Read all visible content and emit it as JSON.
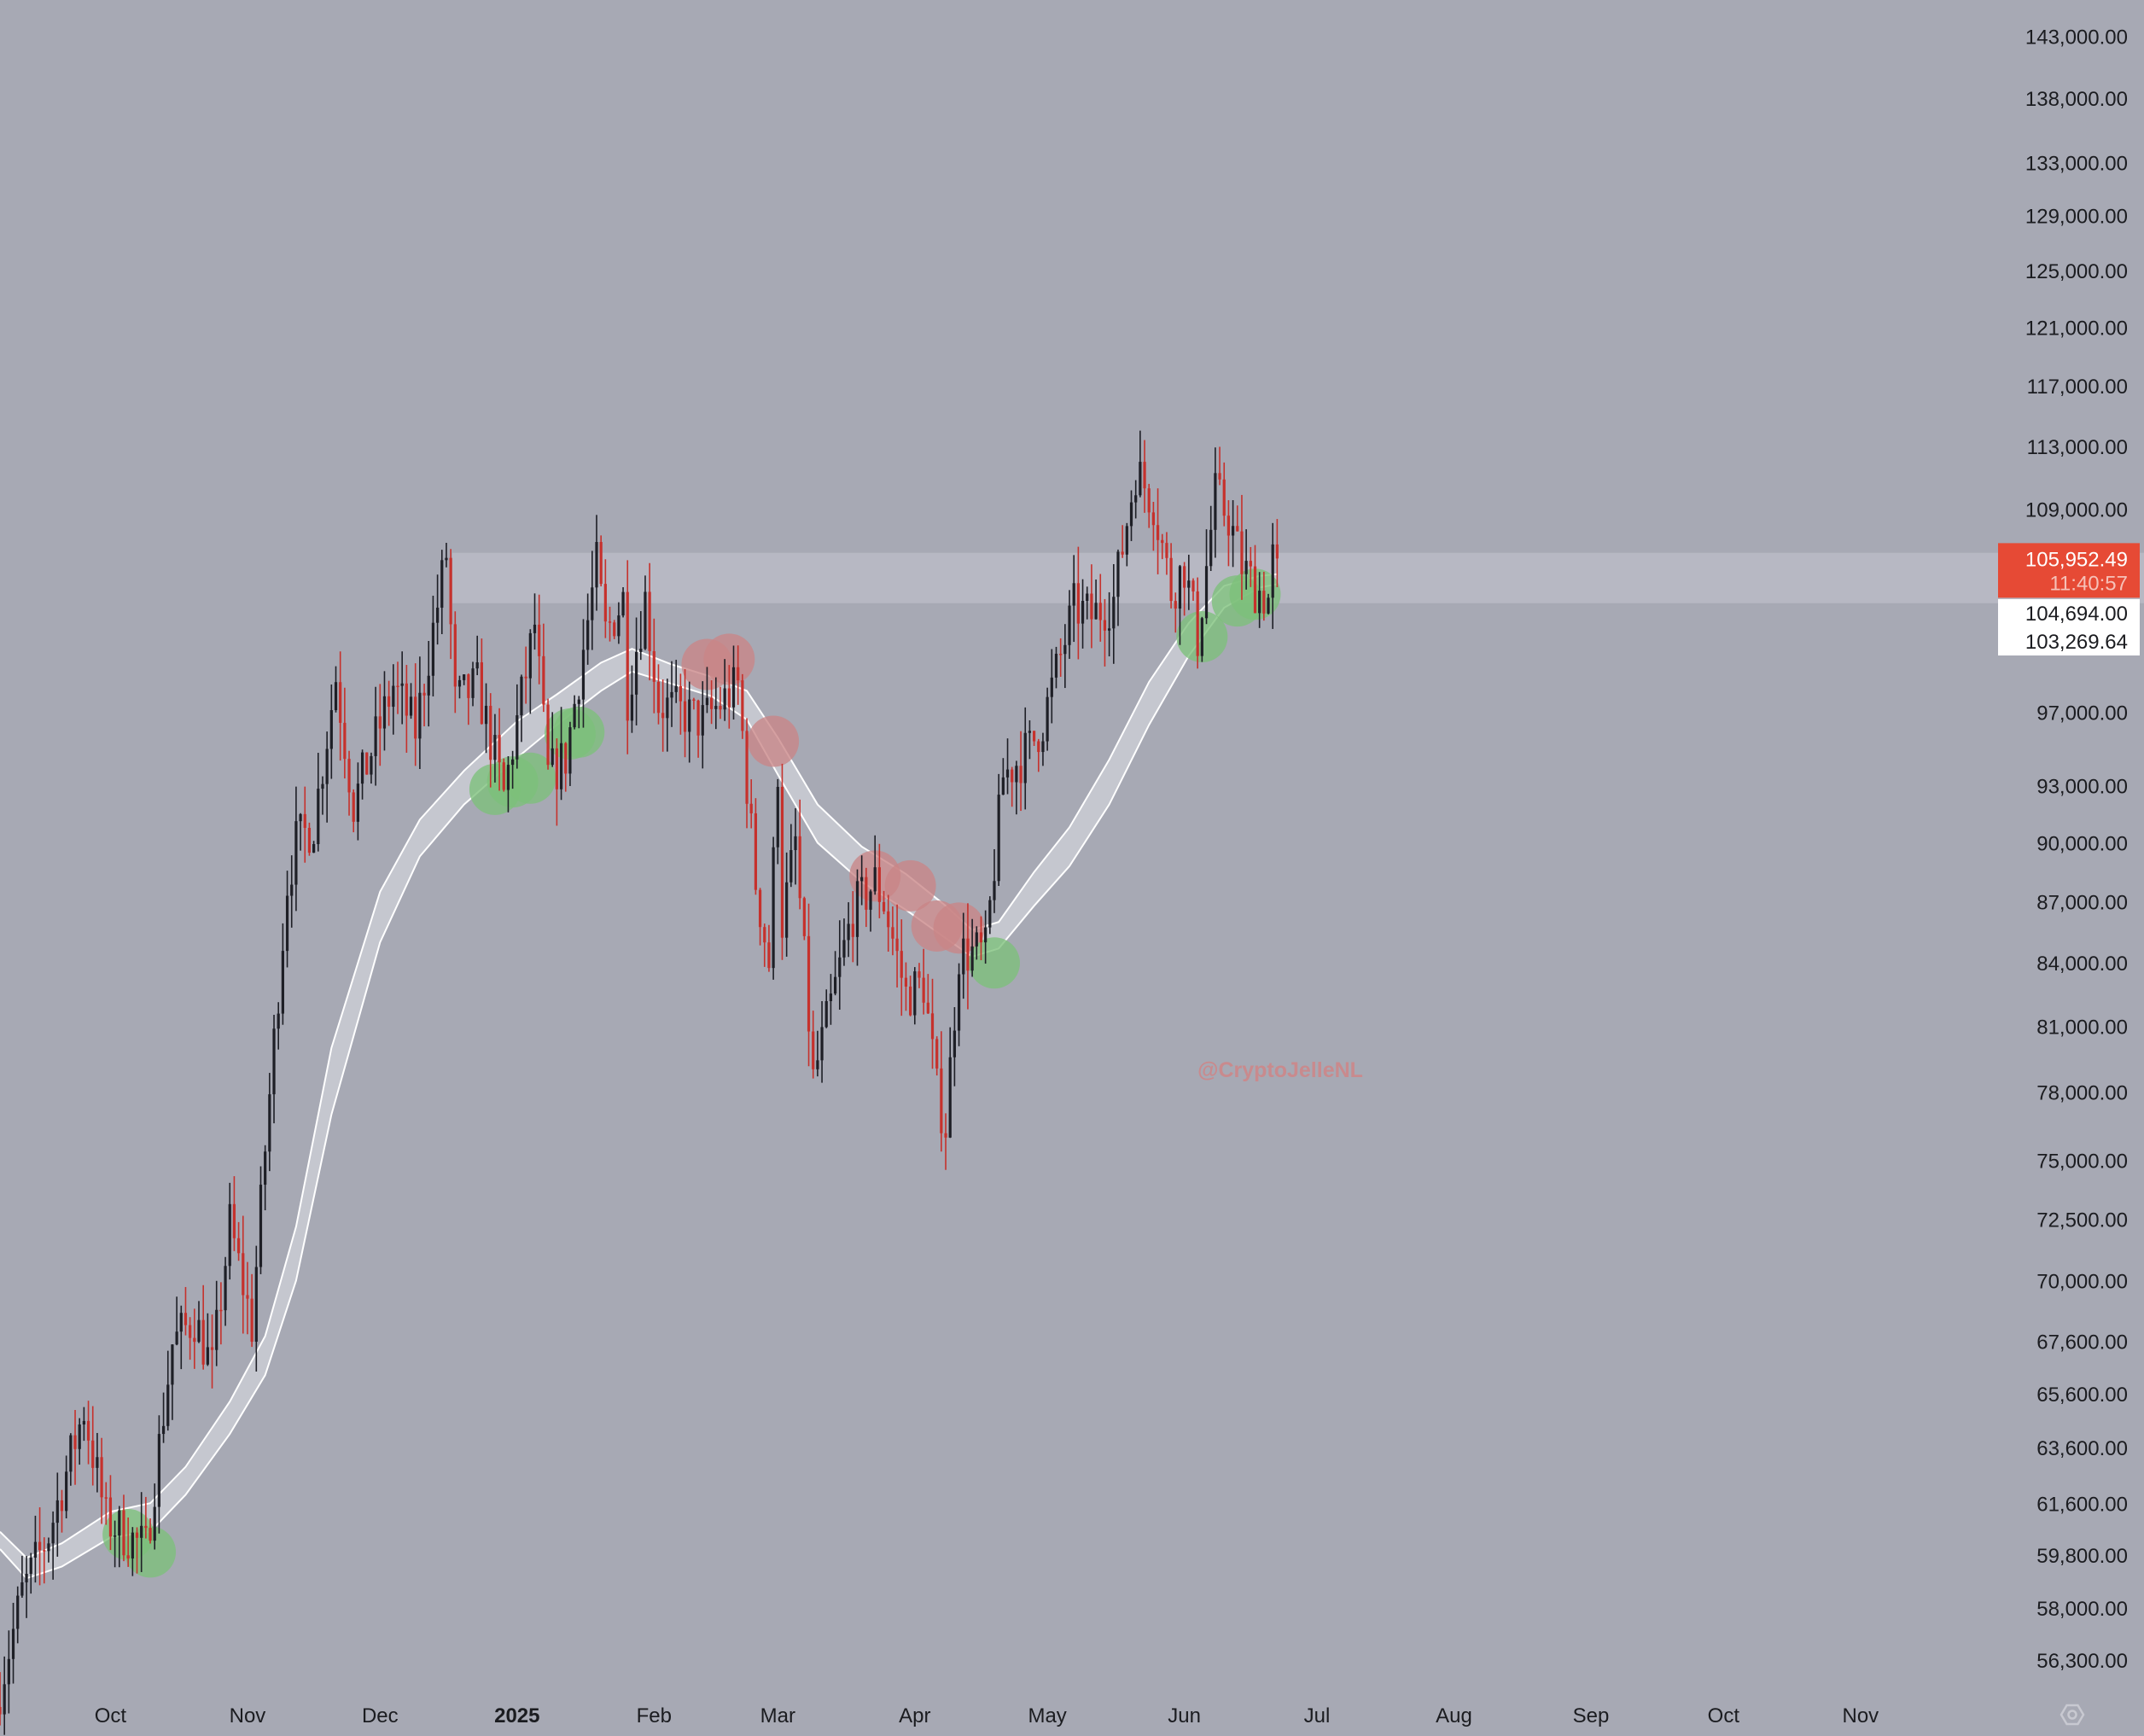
{
  "colors": {
    "background": "#a7a9b4",
    "up_candle": "#1e1f26",
    "down_candle": "#c6312c",
    "band_fill": "#c9cad2",
    "band_edge": "#ffffff",
    "zone": "#babbc6",
    "green_marker": "#7cc07a",
    "red_marker": "#c98587",
    "price_badge": "#e64a35",
    "price_text": "#1b1c20"
  },
  "watermark": "@CryptoJelleNL",
  "settings_icon": "gear-icon",
  "chart_data": {
    "type": "candlestick",
    "title": "",
    "y_scale": "log",
    "ylim": [
      54800,
      146000
    ],
    "xlim": [
      "2024-09-06",
      "2025-11-30"
    ],
    "y_ticks": [
      "143,000.00",
      "138,000.00",
      "133,000.00",
      "129,000.00",
      "125,000.00",
      "121,000.00",
      "117,000.00",
      "113,000.00",
      "109,000.00",
      "97,000.00",
      "93,000.00",
      "90,000.00",
      "87,000.00",
      "84,000.00",
      "81,000.00",
      "78,000.00",
      "75,000.00",
      "72,500.00",
      "70,000.00",
      "67,600.00",
      "65,600.00",
      "63,600.00",
      "61,600.00",
      "59,800.00",
      "58,000.00",
      "56,300.00"
    ],
    "x_ticks": [
      {
        "label": "Oct",
        "date": "2024-10-01",
        "bold": false
      },
      {
        "label": "Nov",
        "date": "2024-11-01",
        "bold": false
      },
      {
        "label": "Dec",
        "date": "2024-12-01",
        "bold": false
      },
      {
        "label": "2025",
        "date": "2025-01-01",
        "bold": true
      },
      {
        "label": "Feb",
        "date": "2025-02-01",
        "bold": false
      },
      {
        "label": "Mar",
        "date": "2025-03-01",
        "bold": false
      },
      {
        "label": "Apr",
        "date": "2025-04-01",
        "bold": false
      },
      {
        "label": "May",
        "date": "2025-05-01",
        "bold": false
      },
      {
        "label": "Jun",
        "date": "2025-06-01",
        "bold": false
      },
      {
        "label": "Jul",
        "date": "2025-07-01",
        "bold": false
      },
      {
        "label": "Aug",
        "date": "2025-08-01",
        "bold": false
      },
      {
        "label": "Sep",
        "date": "2025-09-01",
        "bold": false
      },
      {
        "label": "Oct",
        "date": "2025-10-01",
        "bold": false
      },
      {
        "label": "Nov",
        "date": "2025-11-01",
        "bold": false
      }
    ],
    "price_path": [
      [
        "2024-09-06",
        54800
      ],
      [
        "2024-09-12",
        58500
      ],
      [
        "2024-09-18",
        60500
      ],
      [
        "2024-09-26",
        65000
      ],
      [
        "2024-10-01",
        61000
      ],
      [
        "2024-10-10",
        60000
      ],
      [
        "2024-10-16",
        67500
      ],
      [
        "2024-10-21",
        68500
      ],
      [
        "2024-10-25",
        66500
      ],
      [
        "2024-10-29",
        72300
      ],
      [
        "2024-11-03",
        68200
      ],
      [
        "2024-11-06",
        75500
      ],
      [
        "2024-11-11",
        88000
      ],
      [
        "2024-11-13",
        90000
      ],
      [
        "2024-11-17",
        91000
      ],
      [
        "2024-11-22",
        99000
      ],
      [
        "2024-11-26",
        92000
      ],
      [
        "2024-12-05",
        98500
      ],
      [
        "2024-12-10",
        96000
      ],
      [
        "2024-12-17",
        106200
      ],
      [
        "2024-12-19",
        97500
      ],
      [
        "2024-12-24",
        98500
      ],
      [
        "2024-12-30",
        92500
      ],
      [
        "2025-01-06",
        102000
      ],
      [
        "2025-01-09",
        93500
      ],
      [
        "2025-01-13",
        94500
      ],
      [
        "2025-01-20",
        105500
      ],
      [
        "2025-01-22",
        101500
      ],
      [
        "2025-01-26",
        103500
      ],
      [
        "2025-01-27",
        98000
      ],
      [
        "2025-01-31",
        103500
      ],
      [
        "2025-02-03",
        97500
      ],
      [
        "2025-02-13",
        96500
      ],
      [
        "2025-02-21",
        98500
      ],
      [
        "2025-02-25",
        88000
      ],
      [
        "2025-02-28",
        84000
      ],
      [
        "2025-03-02",
        94000
      ],
      [
        "2025-03-03",
        86000
      ],
      [
        "2025-03-06",
        90000
      ],
      [
        "2025-03-10",
        78500
      ],
      [
        "2025-03-19",
        86500
      ],
      [
        "2025-03-24",
        88000
      ],
      [
        "2025-03-26",
        87000
      ],
      [
        "2025-03-31",
        82500
      ],
      [
        "2025-04-04",
        83000
      ],
      [
        "2025-04-07",
        78000
      ],
      [
        "2025-04-09",
        76500
      ],
      [
        "2025-04-12",
        84500
      ],
      [
        "2025-04-18",
        84500
      ],
      [
        "2025-04-22",
        93500
      ],
      [
        "2025-04-28",
        95000
      ],
      [
        "2025-05-01",
        96500
      ],
      [
        "2025-05-08",
        103000
      ],
      [
        "2025-05-12",
        102500
      ],
      [
        "2025-05-17",
        103500
      ],
      [
        "2025-05-22",
        111500
      ],
      [
        "2025-05-26",
        109500
      ],
      [
        "2025-05-30",
        104000
      ],
      [
        "2025-06-02",
        105500
      ],
      [
        "2025-06-05",
        101200
      ],
      [
        "2025-06-09",
        109900
      ],
      [
        "2025-06-12",
        108500
      ],
      [
        "2025-06-15",
        105500
      ],
      [
        "2025-06-18",
        104200
      ],
      [
        "2025-06-21",
        103500
      ],
      [
        "2025-06-22",
        105952
      ]
    ],
    "band": [
      [
        "2024-09-06",
        60000,
        60600
      ],
      [
        "2024-09-12",
        59000,
        59700
      ],
      [
        "2024-09-20",
        59400,
        60200
      ],
      [
        "2024-10-01",
        60400,
        61300
      ],
      [
        "2024-10-10",
        60600,
        61600
      ],
      [
        "2024-10-18",
        61900,
        62900
      ],
      [
        "2024-10-28",
        64100,
        65300
      ],
      [
        "2024-11-05",
        66300,
        67800
      ],
      [
        "2024-11-12",
        70000,
        72200
      ],
      [
        "2024-11-20",
        77000,
        80000
      ],
      [
        "2024-12-01",
        85000,
        87500
      ],
      [
        "2024-12-10",
        89300,
        91200
      ],
      [
        "2024-12-20",
        92000,
        93800
      ],
      [
        "2025-01-01",
        94500,
        96500
      ],
      [
        "2025-01-10",
        96300,
        98000
      ],
      [
        "2025-01-20",
        98200,
        99800
      ],
      [
        "2025-01-27",
        99300,
        100600
      ],
      [
        "2025-02-05",
        98600,
        99700
      ],
      [
        "2025-02-14",
        97900,
        99000
      ],
      [
        "2025-02-22",
        96600,
        98200
      ],
      [
        "2025-03-01",
        93600,
        95600
      ],
      [
        "2025-03-10",
        90000,
        92000
      ],
      [
        "2025-03-20",
        88000,
        89800
      ],
      [
        "2025-03-30",
        86600,
        88400
      ],
      [
        "2025-04-08",
        85200,
        86800
      ],
      [
        "2025-04-14",
        84300,
        85600
      ],
      [
        "2025-04-20",
        84700,
        86000
      ],
      [
        "2025-04-28",
        86800,
        88500
      ],
      [
        "2025-05-06",
        88800,
        90800
      ],
      [
        "2025-05-15",
        92000,
        94400
      ],
      [
        "2025-05-24",
        96300,
        98700
      ],
      [
        "2025-06-02",
        100200,
        102100
      ],
      [
        "2025-06-10",
        103000,
        104300
      ],
      [
        "2025-06-18",
        104200,
        104900
      ],
      [
        "2025-06-22",
        104400,
        105000
      ]
    ],
    "zone": [
      103269.64,
      106300
    ],
    "markers": [
      {
        "date": "2024-10-05",
        "price": 60500,
        "color": "green"
      },
      {
        "date": "2024-10-10",
        "price": 59900,
        "color": "green"
      },
      {
        "date": "2024-12-27",
        "price": 92800,
        "color": "green"
      },
      {
        "date": "2024-12-31",
        "price": 93200,
        "color": "green"
      },
      {
        "date": "2025-01-04",
        "price": 93400,
        "color": "green"
      },
      {
        "date": "2025-01-13",
        "price": 95800,
        "color": "green"
      },
      {
        "date": "2025-01-15",
        "price": 95900,
        "color": "green"
      },
      {
        "date": "2025-02-13",
        "price": 99700,
        "color": "red"
      },
      {
        "date": "2025-02-18",
        "price": 100000,
        "color": "red"
      },
      {
        "date": "2025-02-28",
        "price": 95400,
        "color": "red"
      },
      {
        "date": "2025-03-23",
        "price": 88300,
        "color": "red"
      },
      {
        "date": "2025-03-31",
        "price": 87800,
        "color": "red"
      },
      {
        "date": "2025-04-06",
        "price": 85800,
        "color": "red"
      },
      {
        "date": "2025-04-11",
        "price": 85700,
        "color": "red"
      },
      {
        "date": "2025-04-19",
        "price": 84000,
        "color": "green"
      },
      {
        "date": "2025-06-05",
        "price": 101300,
        "color": "green"
      },
      {
        "date": "2025-06-13",
        "price": 103400,
        "color": "green"
      },
      {
        "date": "2025-06-17",
        "price": 103800,
        "color": "green"
      }
    ],
    "last_price": {
      "value": 105952.49,
      "label": "105,952.49",
      "countdown": "11:40:57"
    },
    "price_labels": [
      {
        "value": 104694.0,
        "label": "104,694.00"
      },
      {
        "value": 103269.64,
        "label": "103,269.64"
      }
    ]
  }
}
